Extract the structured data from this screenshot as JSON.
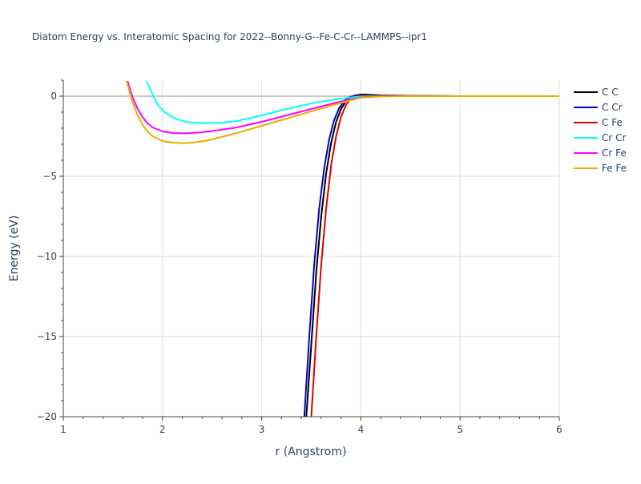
{
  "chart_data": {
    "type": "line",
    "title": "Diatom Energy vs. Interatomic Spacing for 2022--Bonny-G--Fe-C-Cr--LAMMPS--ipr1",
    "xlabel": "r (Angstrom)",
    "ylabel": "Energy (eV)",
    "xlim": [
      1,
      6
    ],
    "ylim": [
      -20,
      1
    ],
    "xticks": [
      1,
      2,
      3,
      4,
      5,
      6
    ],
    "xtick_labels": [
      "1",
      "2",
      "3",
      "4",
      "5",
      "6"
    ],
    "yticks": [
      0,
      -5,
      -10,
      -15,
      -20
    ],
    "ytick_labels": [
      "0",
      "−5",
      "−10",
      "−15",
      "−20"
    ],
    "grid": true,
    "legend_position": "right",
    "series": [
      {
        "name": "C C",
        "color": "#000000",
        "x": [
          3.45,
          3.5,
          3.55,
          3.6,
          3.65,
          3.7,
          3.75,
          3.8,
          3.85,
          3.9,
          3.95,
          4.0,
          4.05,
          4.1,
          4.2,
          4.5,
          5.0,
          5.5,
          6.0
        ],
        "y": [
          -20,
          -15.5,
          -11,
          -7.5,
          -4.8,
          -2.9,
          -1.6,
          -0.8,
          -0.3,
          -0.05,
          0.05,
          0.1,
          0.1,
          0.08,
          0.05,
          0.02,
          0,
          0,
          0
        ]
      },
      {
        "name": "C Cr",
        "color": "#0000cc",
        "x": [
          3.43,
          3.48,
          3.53,
          3.58,
          3.63,
          3.68,
          3.73,
          3.78,
          3.83,
          3.88,
          3.93,
          4.0,
          4.1,
          4.5,
          5.0,
          5.5,
          6.0
        ],
        "y": [
          -20,
          -15,
          -10.5,
          -7,
          -4.5,
          -2.7,
          -1.5,
          -0.75,
          -0.3,
          -0.08,
          0.02,
          0.04,
          0.03,
          0.01,
          0,
          0,
          0
        ]
      },
      {
        "name": "C Fe",
        "color": "#dd0000",
        "x": [
          3.5,
          3.55,
          3.6,
          3.65,
          3.7,
          3.75,
          3.8,
          3.85,
          3.9,
          3.95,
          4.0,
          4.1,
          4.5,
          5.0,
          5.5,
          6.0
        ],
        "y": [
          -20,
          -15,
          -10.5,
          -7,
          -4.3,
          -2.5,
          -1.3,
          -0.55,
          -0.15,
          -0.02,
          0.02,
          0.02,
          0.01,
          0,
          0,
          0
        ]
      },
      {
        "name": "Cr Cr",
        "color": "#00ffff",
        "x": [
          1.84,
          1.9,
          1.95,
          2.0,
          2.1,
          2.2,
          2.3,
          2.4,
          2.5,
          2.6,
          2.75,
          3.0,
          3.25,
          3.5,
          3.75,
          3.9,
          4.0,
          4.2,
          4.5,
          5.0,
          5.5,
          6.0
        ],
        "y": [
          0.9,
          0.1,
          -0.5,
          -0.9,
          -1.3,
          -1.55,
          -1.65,
          -1.68,
          -1.68,
          -1.65,
          -1.55,
          -1.2,
          -0.8,
          -0.45,
          -0.2,
          -0.08,
          -0.02,
          0,
          0,
          0,
          0,
          0
        ]
      },
      {
        "name": "Cr Fe",
        "color": "#ff00ff",
        "x": [
          1.65,
          1.7,
          1.75,
          1.8,
          1.85,
          1.9,
          2.0,
          2.1,
          2.2,
          2.3,
          2.4,
          2.5,
          2.75,
          3.0,
          3.25,
          3.5,
          3.75,
          3.9,
          4.0,
          4.2,
          4.5,
          5.0,
          5.5,
          6.0
        ],
        "y": [
          0.9,
          -0.1,
          -0.8,
          -1.3,
          -1.7,
          -1.95,
          -2.2,
          -2.3,
          -2.32,
          -2.3,
          -2.25,
          -2.18,
          -1.95,
          -1.6,
          -1.2,
          -0.8,
          -0.4,
          -0.2,
          -0.08,
          0,
          0,
          0,
          0,
          0
        ]
      },
      {
        "name": "Fe Fe",
        "color": "#e6b000",
        "x": [
          1.64,
          1.7,
          1.75,
          1.8,
          1.85,
          1.9,
          2.0,
          2.1,
          2.2,
          2.3,
          2.4,
          2.5,
          2.75,
          3.0,
          3.25,
          3.5,
          3.75,
          3.9,
          4.0,
          4.2,
          4.5,
          5.0,
          5.5,
          6.0
        ],
        "y": [
          0.9,
          -0.4,
          -1.2,
          -1.8,
          -2.2,
          -2.5,
          -2.8,
          -2.9,
          -2.93,
          -2.9,
          -2.82,
          -2.7,
          -2.3,
          -1.85,
          -1.4,
          -0.95,
          -0.5,
          -0.25,
          -0.1,
          -0.02,
          0,
          0,
          0,
          0
        ]
      }
    ]
  }
}
